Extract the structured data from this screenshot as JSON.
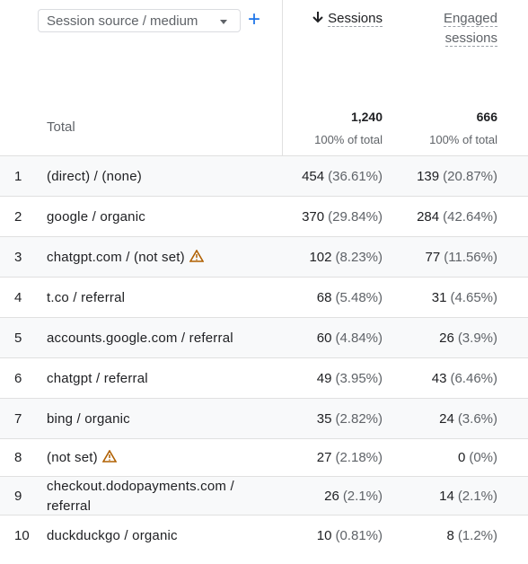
{
  "header": {
    "dimension": "Session source / medium",
    "add": "+",
    "columns": [
      "Sessions",
      "Engaged sessions"
    ]
  },
  "total": {
    "label": "Total",
    "sessions": "1,240",
    "sessions_pct": "100% of total",
    "engaged": "666",
    "engaged_pct": "100% of total"
  },
  "table": {
    "rows": [
      {
        "index": "1",
        "name": "(direct) / (none)",
        "sessions": "454",
        "sessions_pct": "(36.61%)",
        "engaged": "139",
        "engaged_pct": "(20.87%)"
      },
      {
        "index": "2",
        "name": "google / organic",
        "sessions": "370",
        "sessions_pct": "(29.84%)",
        "engaged": "284",
        "engaged_pct": "(42.64%)"
      },
      {
        "index": "3",
        "name": "chatgpt.com / (not set)",
        "warning": true,
        "sessions": "102",
        "sessions_pct": "(8.23%)",
        "engaged": "77",
        "engaged_pct": "(11.56%)"
      },
      {
        "index": "4",
        "name": "t.co / referral",
        "sessions": "68",
        "sessions_pct": "(5.48%)",
        "engaged": "31",
        "engaged_pct": "(4.65%)"
      },
      {
        "index": "5",
        "name": "accounts.google.com / referral",
        "sessions": "60",
        "sessions_pct": "(4.84%)",
        "engaged": "26",
        "engaged_pct": "(3.9%)"
      },
      {
        "index": "6",
        "name": "chatgpt / referral",
        "sessions": "49",
        "sessions_pct": "(3.95%)",
        "engaged": "43",
        "engaged_pct": "(6.46%)"
      },
      {
        "index": "7",
        "name": "bing / organic",
        "sessions": "35",
        "sessions_pct": "(2.82%)",
        "engaged": "24",
        "engaged_pct": "(3.6%)"
      },
      {
        "index": "8",
        "name": "(not set)",
        "warning": true,
        "sessions": "27",
        "sessions_pct": "(2.18%)",
        "engaged": "0",
        "engaged_pct": "(0%)"
      },
      {
        "index": "9",
        "name": "checkout.dodopayments.com / referral",
        "sessions": "26",
        "sessions_pct": "(2.1%)",
        "engaged": "14",
        "engaged_pct": "(2.1%)"
      },
      {
        "index": "10",
        "name": "duckduckgo / organic",
        "sessions": "10",
        "sessions_pct": "(0.81%)",
        "engaged": "8",
        "engaged_pct": "(1.2%)"
      }
    ]
  }
}
